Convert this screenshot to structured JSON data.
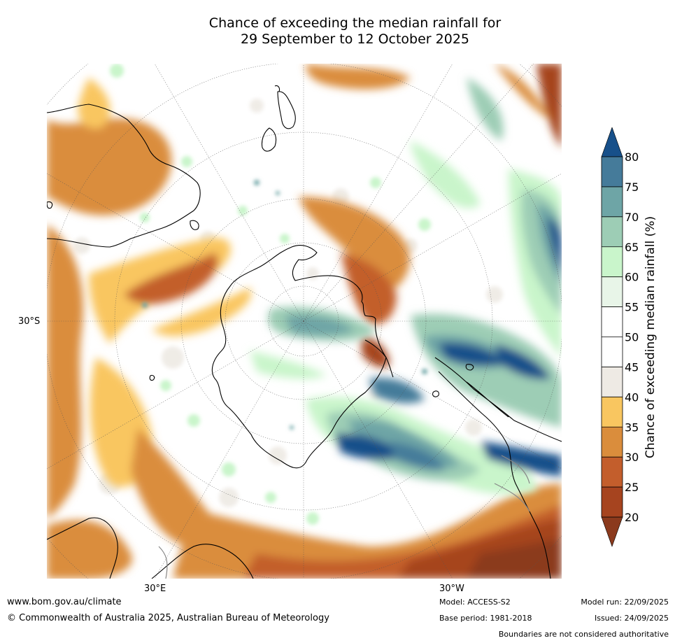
{
  "title_line1": "Chance of exceeding the median rainfall for",
  "title_line2": "29 September to 12 October 2025",
  "map": {
    "projection": "south polar stereographic",
    "lat_label": "30°S",
    "lon_labels": {
      "east": "30°E",
      "west": "30°W"
    }
  },
  "colorbar": {
    "label": "Chance of exceeding median rainfall (%)",
    "ticks": [
      "20",
      "25",
      "30",
      "35",
      "40",
      "45",
      "50",
      "55",
      "60",
      "65",
      "70",
      "75",
      "80"
    ],
    "colors": [
      "#8b3a1d",
      "#a6441f",
      "#c35e2c",
      "#da8d3c",
      "#f9c660",
      "#eeeae4",
      "#ffffff",
      "#ffffff",
      "#e8f5e8",
      "#c9f5cb",
      "#9dcdb5",
      "#6ea5a6",
      "#457b9a",
      "#17508a"
    ],
    "extend": "both"
  },
  "footer": {
    "url": "www.bom.gov.au/climate",
    "copyright": "© Commonwealth of Australia 2025, Australian Bureau of Meteorology",
    "model": "Model: ACCESS-S2",
    "base_period": "Base period: 1981-2018",
    "model_run": "Model run: 22/09/2025",
    "issued": "Issued: 24/09/2025",
    "boundaries_note": "Boundaries are not considered authoritative"
  }
}
